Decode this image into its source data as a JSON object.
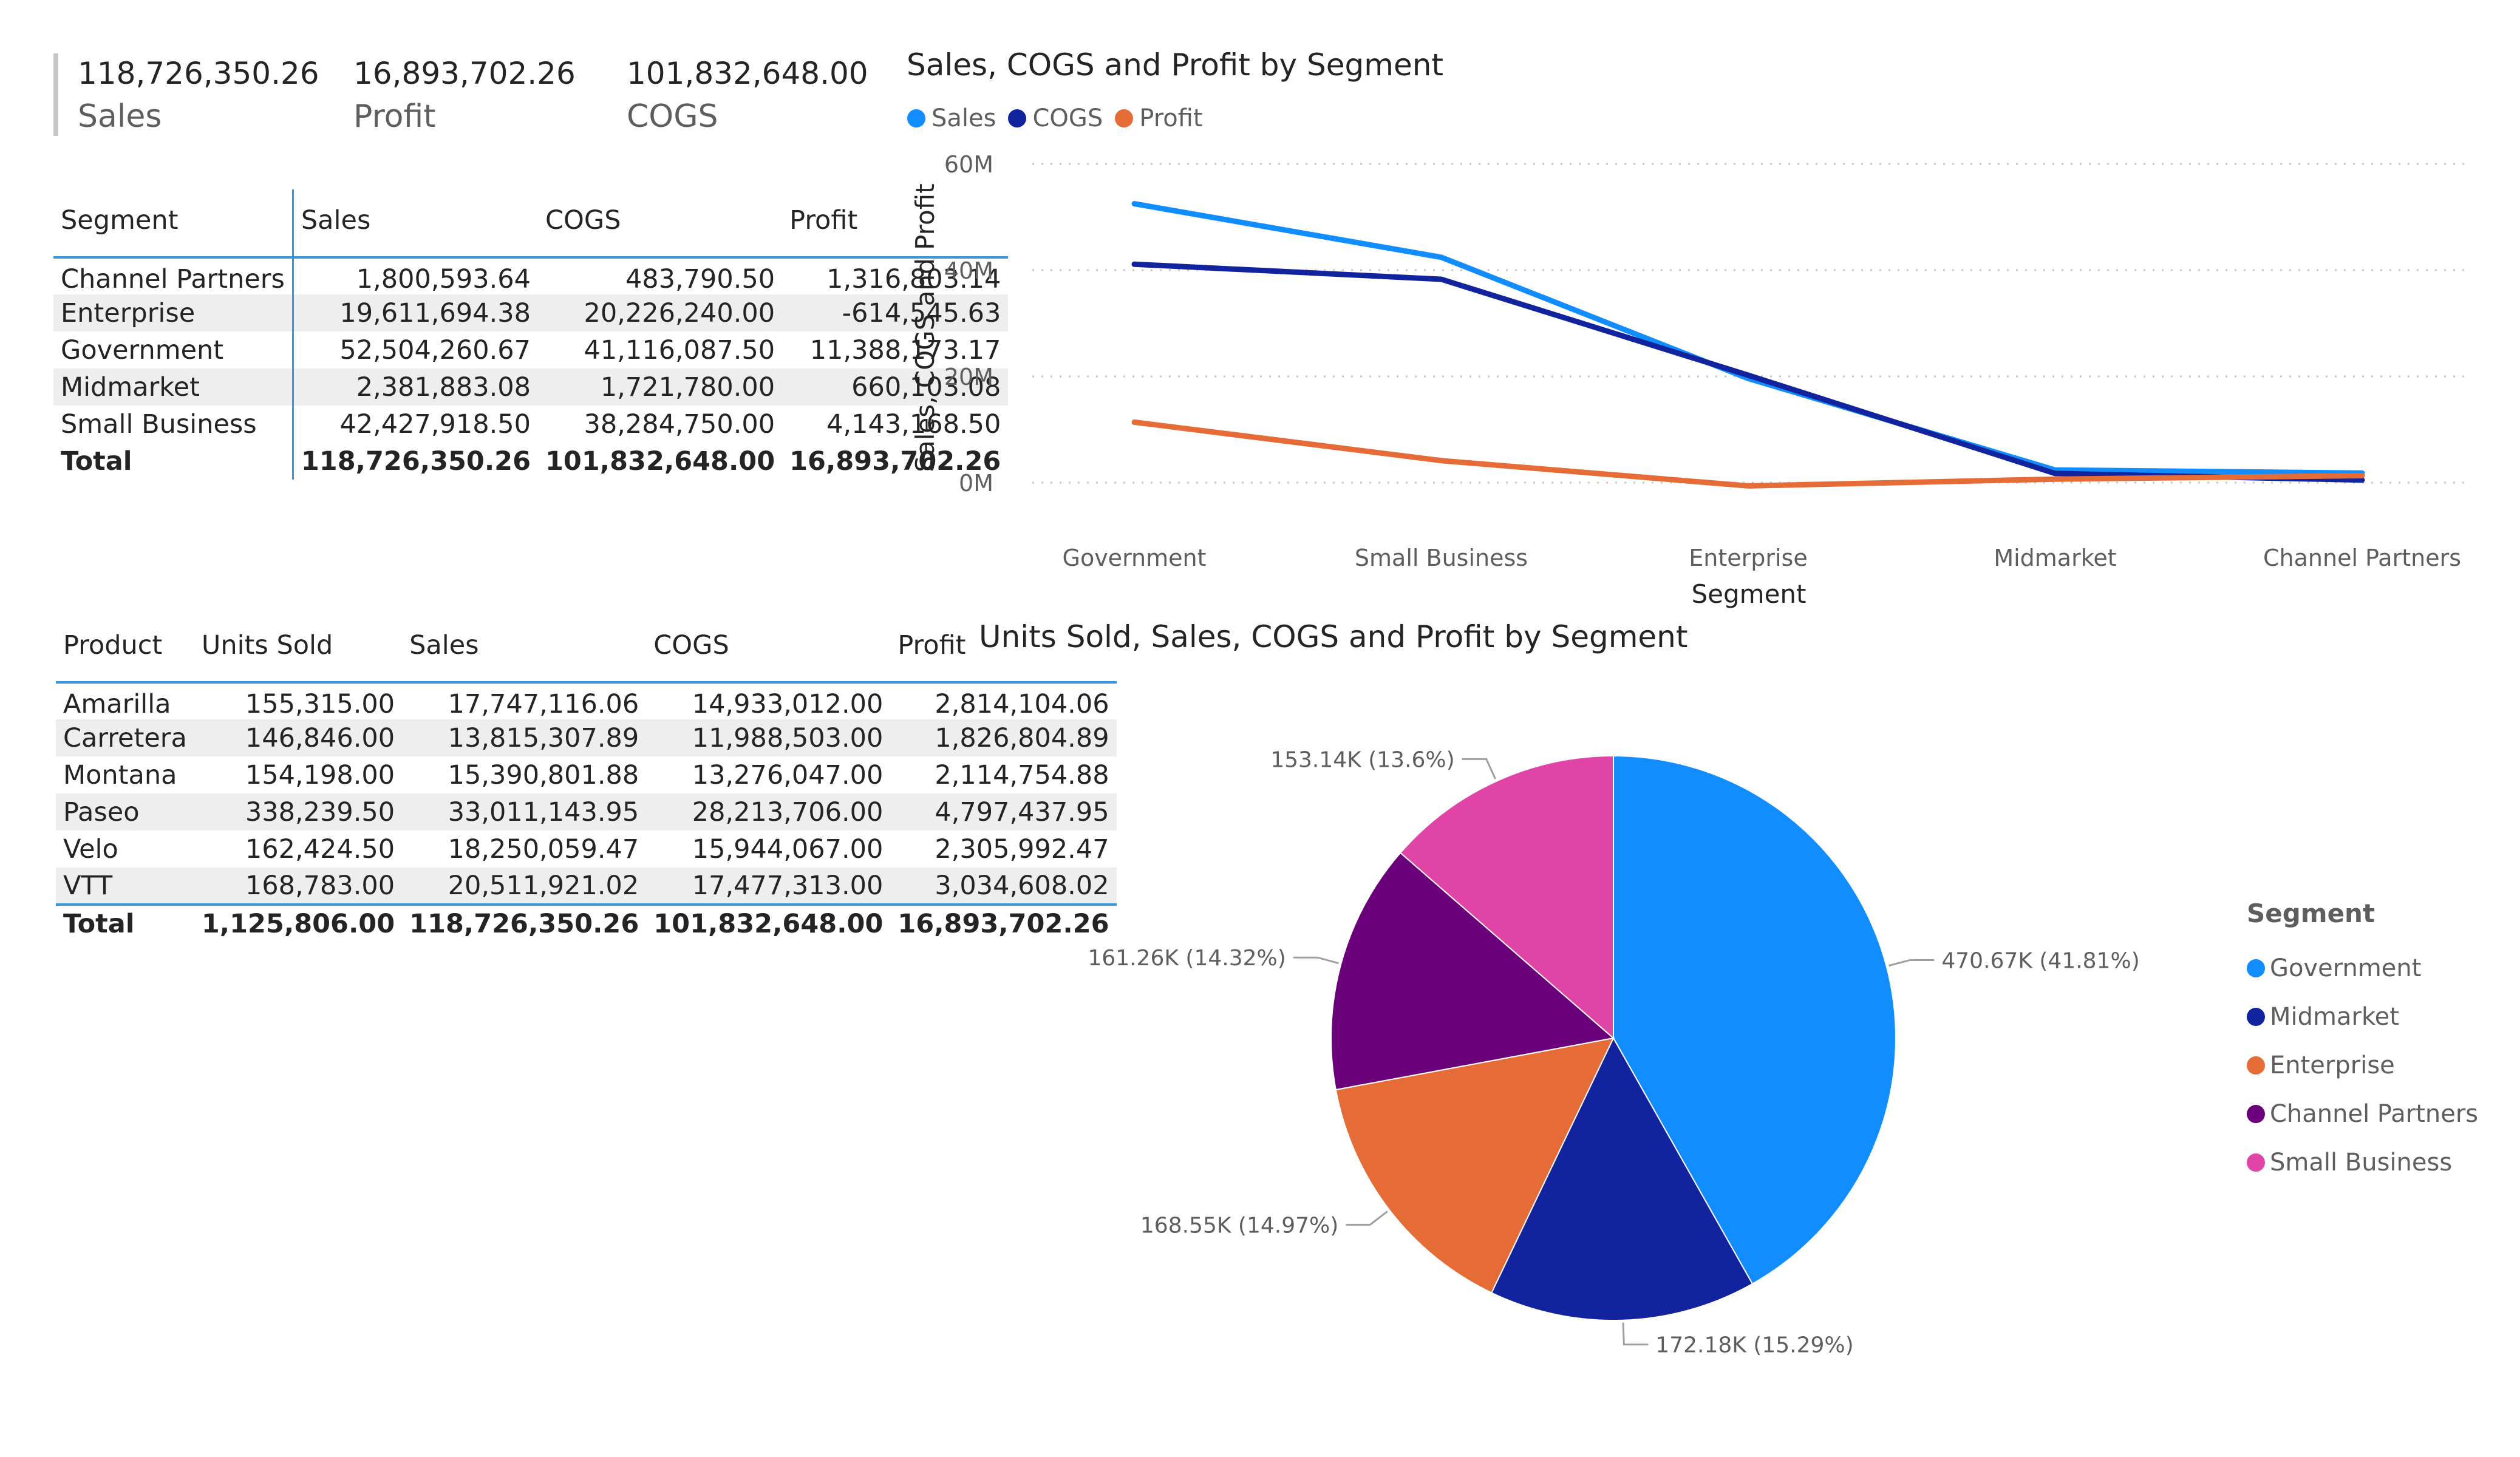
{
  "kpis": [
    {
      "value": "118,726,350.26",
      "label": "Sales"
    },
    {
      "value": "16,893,702.26",
      "label": "Profit"
    },
    {
      "value": "101,832,648.00",
      "label": "COGS"
    }
  ],
  "segment_table": {
    "headers": [
      "Segment",
      "Sales",
      "COGS",
      "Profit"
    ],
    "rows": [
      [
        "Channel Partners",
        "1,800,593.64",
        "483,790.50",
        "1,316,803.14"
      ],
      [
        "Enterprise",
        "19,611,694.38",
        "20,226,240.00",
        "-614,545.63"
      ],
      [
        "Government",
        "52,504,260.67",
        "41,116,087.50",
        "11,388,173.17"
      ],
      [
        "Midmarket",
        "2,381,883.08",
        "1,721,780.00",
        "660,103.08"
      ],
      [
        "Small Business",
        "42,427,918.50",
        "38,284,750.00",
        "4,143,168.50"
      ]
    ],
    "total": [
      "Total",
      "118,726,350.26",
      "101,832,648.00",
      "16,893,702.26"
    ]
  },
  "product_table": {
    "headers": [
      "Product",
      "Units Sold",
      "Sales",
      "COGS",
      "Profit"
    ],
    "rows": [
      [
        "Amarilla",
        "155,315.00",
        "17,747,116.06",
        "14,933,012.00",
        "2,814,104.06"
      ],
      [
        "Carretera",
        "146,846.00",
        "13,815,307.89",
        "11,988,503.00",
        "1,826,804.89"
      ],
      [
        "Montana",
        "154,198.00",
        "15,390,801.88",
        "13,276,047.00",
        "2,114,754.88"
      ],
      [
        "Paseo",
        "338,239.50",
        "33,011,143.95",
        "28,213,706.00",
        "4,797,437.95"
      ],
      [
        "Velo",
        "162,424.50",
        "18,250,059.47",
        "15,944,067.00",
        "2,305,992.47"
      ],
      [
        "VTT",
        "168,783.00",
        "20,511,921.02",
        "17,477,313.00",
        "3,034,608.02"
      ]
    ],
    "total": [
      "Total",
      "1,125,806.00",
      "118,726,350.26",
      "101,832,648.00",
      "16,893,702.26"
    ]
  },
  "line_chart": {
    "title": "Sales, COGS and Profit by Segment",
    "legend": [
      {
        "name": "Sales",
        "color": "#118dff"
      },
      {
        "name": "COGS",
        "color": "#12239e"
      },
      {
        "name": "Profit",
        "color": "#e66c37"
      }
    ]
  },
  "pie_chart": {
    "title": "Units Sold, Sales, COGS and Profit by Segment",
    "legend_title": "Segment",
    "legend": [
      {
        "name": "Government",
        "color": "#118dff"
      },
      {
        "name": "Midmarket",
        "color": "#12239e"
      },
      {
        "name": "Enterprise",
        "color": "#e66c37"
      },
      {
        "name": "Channel Partners",
        "color": "#6b007b"
      },
      {
        "name": "Small Business",
        "color": "#e044a7"
      }
    ]
  },
  "chart_data": [
    {
      "type": "line",
      "title": "Sales, COGS and Profit by Segment",
      "xlabel": "Segment",
      "ylabel": "Sales, COGS and Profit",
      "categories": [
        "Government",
        "Small Business",
        "Enterprise",
        "Midmarket",
        "Channel Partners"
      ],
      "y_ticks": [
        "60M",
        "40M",
        "20M",
        "0M"
      ],
      "ylim": [
        0,
        60000000
      ],
      "grid": true,
      "legend_position": "top-left",
      "series": [
        {
          "name": "Sales",
          "color": "#118dff",
          "values": [
            52504260.67,
            42427918.5,
            19611694.38,
            2381883.08,
            1800593.64
          ]
        },
        {
          "name": "COGS",
          "color": "#12239e",
          "values": [
            41116087.5,
            38284750.0,
            20226240.0,
            1721780.0,
            483790.5
          ]
        },
        {
          "name": "Profit",
          "color": "#e66c37",
          "values": [
            11388173.17,
            4143168.5,
            -614545.63,
            660103.08,
            1316803.14
          ]
        }
      ]
    },
    {
      "type": "pie",
      "title": "Units Sold, Sales, COGS and Profit by Segment",
      "legend_title": "Segment",
      "legend_position": "right",
      "slices": [
        {
          "name": "Government",
          "value": 470670,
          "label": "470.67K (41.81%)",
          "color": "#118dff"
        },
        {
          "name": "Midmarket",
          "value": 172180,
          "label": "172.18K (15.29%)",
          "color": "#12239e"
        },
        {
          "name": "Enterprise",
          "value": 168550,
          "label": "168.55K (14.97%)",
          "color": "#e66c37"
        },
        {
          "name": "Channel Partners",
          "value": 161260,
          "label": "161.26K (14.32%)",
          "color": "#6b007b"
        },
        {
          "name": "Small Business",
          "value": 153140,
          "label": "153.14K (13.6%)",
          "color": "#e044a7"
        }
      ]
    }
  ]
}
